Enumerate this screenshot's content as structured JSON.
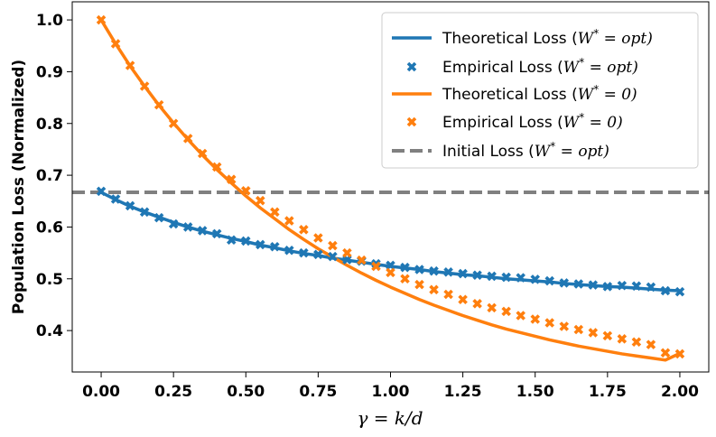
{
  "chart_data": {
    "type": "line",
    "title": "",
    "xlabel": "γ = k/d",
    "ylabel": "Population Loss (Normalized)",
    "xlim": [
      -0.1,
      2.1
    ],
    "ylim": [
      0.32,
      1.035
    ],
    "xticks": [
      0.0,
      0.25,
      0.5,
      0.75,
      1.0,
      1.25,
      1.5,
      1.75,
      2.0
    ],
    "xtick_labels": [
      "0.00",
      "0.25",
      "0.50",
      "0.75",
      "1.00",
      "1.25",
      "1.50",
      "1.75",
      "2.00"
    ],
    "yticks": [
      0.4,
      0.5,
      0.6,
      0.7,
      0.8,
      0.9,
      1.0
    ],
    "ytick_labels": [
      "0.4",
      "0.5",
      "0.6",
      "0.7",
      "0.8",
      "0.9",
      "1.0"
    ],
    "legend_position": "top-right",
    "gamma": [
      0.0,
      0.05,
      0.1,
      0.15,
      0.2,
      0.25,
      0.3,
      0.35,
      0.4,
      0.45,
      0.5,
      0.55,
      0.6,
      0.65,
      0.7,
      0.75,
      0.8,
      0.85,
      0.9,
      0.95,
      1.0,
      1.05,
      1.1,
      1.15,
      1.2,
      1.25,
      1.3,
      1.35,
      1.4,
      1.45,
      1.5,
      1.55,
      1.6,
      1.65,
      1.7,
      1.75,
      1.8,
      1.85,
      1.9,
      1.95,
      2.0
    ],
    "series": [
      {
        "name": "Theoretical Loss (W* = opt)",
        "kind": "line",
        "color": "#1f77b4",
        "values": [
          0.667,
          0.653,
          0.64,
          0.629,
          0.619,
          0.609,
          0.6,
          0.592,
          0.585,
          0.578,
          0.572,
          0.565,
          0.56,
          0.554,
          0.549,
          0.545,
          0.54,
          0.536,
          0.532,
          0.528,
          0.524,
          0.521,
          0.518,
          0.514,
          0.511,
          0.508,
          0.506,
          0.503,
          0.5,
          0.498,
          0.496,
          0.494,
          0.491,
          0.489,
          0.487,
          0.485,
          0.484,
          0.482,
          0.48,
          0.478,
          0.477
        ]
      },
      {
        "name": "Empirical Loss (W* = opt)",
        "kind": "scatter",
        "color": "#1f77b4",
        "values": [
          0.669,
          0.654,
          0.641,
          0.629,
          0.618,
          0.606,
          0.6,
          0.593,
          0.587,
          0.575,
          0.573,
          0.566,
          0.562,
          0.555,
          0.55,
          0.547,
          0.543,
          0.537,
          0.534,
          0.529,
          0.526,
          0.522,
          0.518,
          0.515,
          0.513,
          0.51,
          0.507,
          0.505,
          0.503,
          0.502,
          0.499,
          0.496,
          0.492,
          0.49,
          0.488,
          0.485,
          0.487,
          0.486,
          0.484,
          0.477,
          0.475
        ]
      },
      {
        "name": "Theoretical Loss (W* = 0)",
        "kind": "line",
        "color": "#ff7f0e",
        "values": [
          1.0,
          0.954,
          0.911,
          0.872,
          0.835,
          0.801,
          0.769,
          0.739,
          0.711,
          0.685,
          0.66,
          0.637,
          0.616,
          0.595,
          0.576,
          0.558,
          0.542,
          0.526,
          0.511,
          0.497,
          0.484,
          0.472,
          0.46,
          0.449,
          0.439,
          0.429,
          0.42,
          0.411,
          0.403,
          0.396,
          0.389,
          0.382,
          0.376,
          0.37,
          0.365,
          0.36,
          0.355,
          0.351,
          0.347,
          0.343,
          0.356
        ]
      },
      {
        "name": "Empirical Loss (W* = 0)",
        "kind": "scatter",
        "color": "#ff7f0e",
        "values": [
          1.0,
          0.954,
          0.912,
          0.872,
          0.836,
          0.8,
          0.771,
          0.742,
          0.716,
          0.692,
          0.67,
          0.651,
          0.629,
          0.612,
          0.595,
          0.579,
          0.564,
          0.55,
          0.536,
          0.524,
          0.512,
          0.5,
          0.489,
          0.479,
          0.47,
          0.46,
          0.452,
          0.444,
          0.437,
          0.429,
          0.422,
          0.415,
          0.408,
          0.402,
          0.396,
          0.39,
          0.384,
          0.378,
          0.373,
          0.357,
          0.355
        ]
      },
      {
        "name": "Initial Loss (W* = opt)",
        "kind": "hline",
        "color": "#808080",
        "value": 0.667
      }
    ],
    "legend": [
      {
        "series": 0,
        "pre": "Theoretical Loss (",
        "eq": "W",
        "post": " = opt)"
      },
      {
        "series": 1,
        "pre": "Empirical Loss (",
        "eq": "W",
        "post": " = opt)"
      },
      {
        "series": 2,
        "pre": "Theoretical Loss (",
        "eq": "W",
        "post": " = 0)"
      },
      {
        "series": 3,
        "pre": "Empirical Loss (",
        "eq": "W",
        "post": " = 0)"
      },
      {
        "series": 4,
        "pre": "Initial Loss (",
        "eq": "W",
        "post": " = opt)"
      }
    ]
  }
}
